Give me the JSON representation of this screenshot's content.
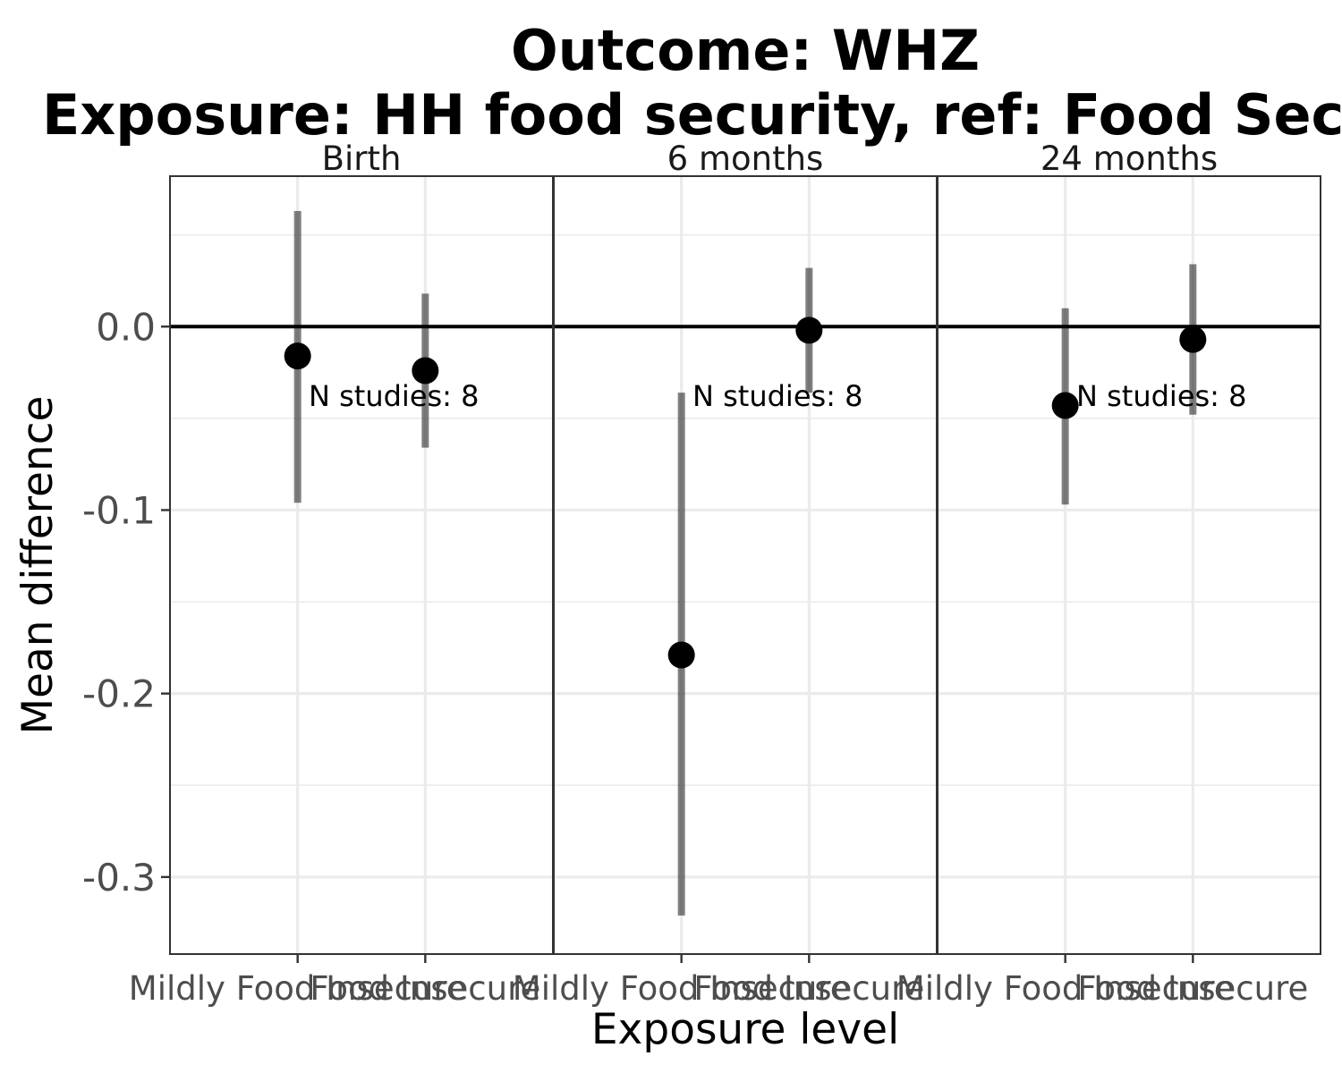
{
  "chart_data": {
    "type": "scatter",
    "title_lines": [
      "Outcome: WHZ",
      "Exposure: HH food security, ref: Food Secure"
    ],
    "xlabel": "Exposure level",
    "ylabel": "Mean difference",
    "ylim": [
      -0.342,
      0.082
    ],
    "y_major_ticks": [
      0.0,
      -0.1,
      -0.2,
      -0.3
    ],
    "y_tick_labels": [
      "0.0",
      "-0.1",
      "-0.2",
      "-0.3"
    ],
    "y_minor_ticks": [
      0.05,
      -0.05,
      -0.15,
      -0.25
    ],
    "reference_line": 0,
    "grid": true,
    "categories": [
      "Mildly Food Insecure",
      "Food Insecure"
    ],
    "panels": [
      {
        "strip": "Birth",
        "annotation": "N studies: 8",
        "points": [
          {
            "category": "Mildly Food Insecure",
            "est": -0.016,
            "lower": -0.096,
            "upper": 0.063
          },
          {
            "category": "Food Insecure",
            "est": -0.024,
            "lower": -0.066,
            "upper": 0.018
          }
        ]
      },
      {
        "strip": "6 months",
        "annotation": "N studies: 8",
        "points": [
          {
            "category": "Mildly Food Insecure",
            "est": -0.179,
            "lower": -0.321,
            "upper": -0.036
          },
          {
            "category": "Food Insecure",
            "est": -0.002,
            "lower": -0.036,
            "upper": 0.032
          }
        ]
      },
      {
        "strip": "24 months",
        "annotation": "N studies: 8",
        "points": [
          {
            "category": "Mildly Food Insecure",
            "est": -0.043,
            "lower": -0.097,
            "upper": 0.01
          },
          {
            "category": "Food Insecure",
            "est": -0.007,
            "lower": -0.048,
            "upper": 0.034
          }
        ]
      }
    ]
  }
}
